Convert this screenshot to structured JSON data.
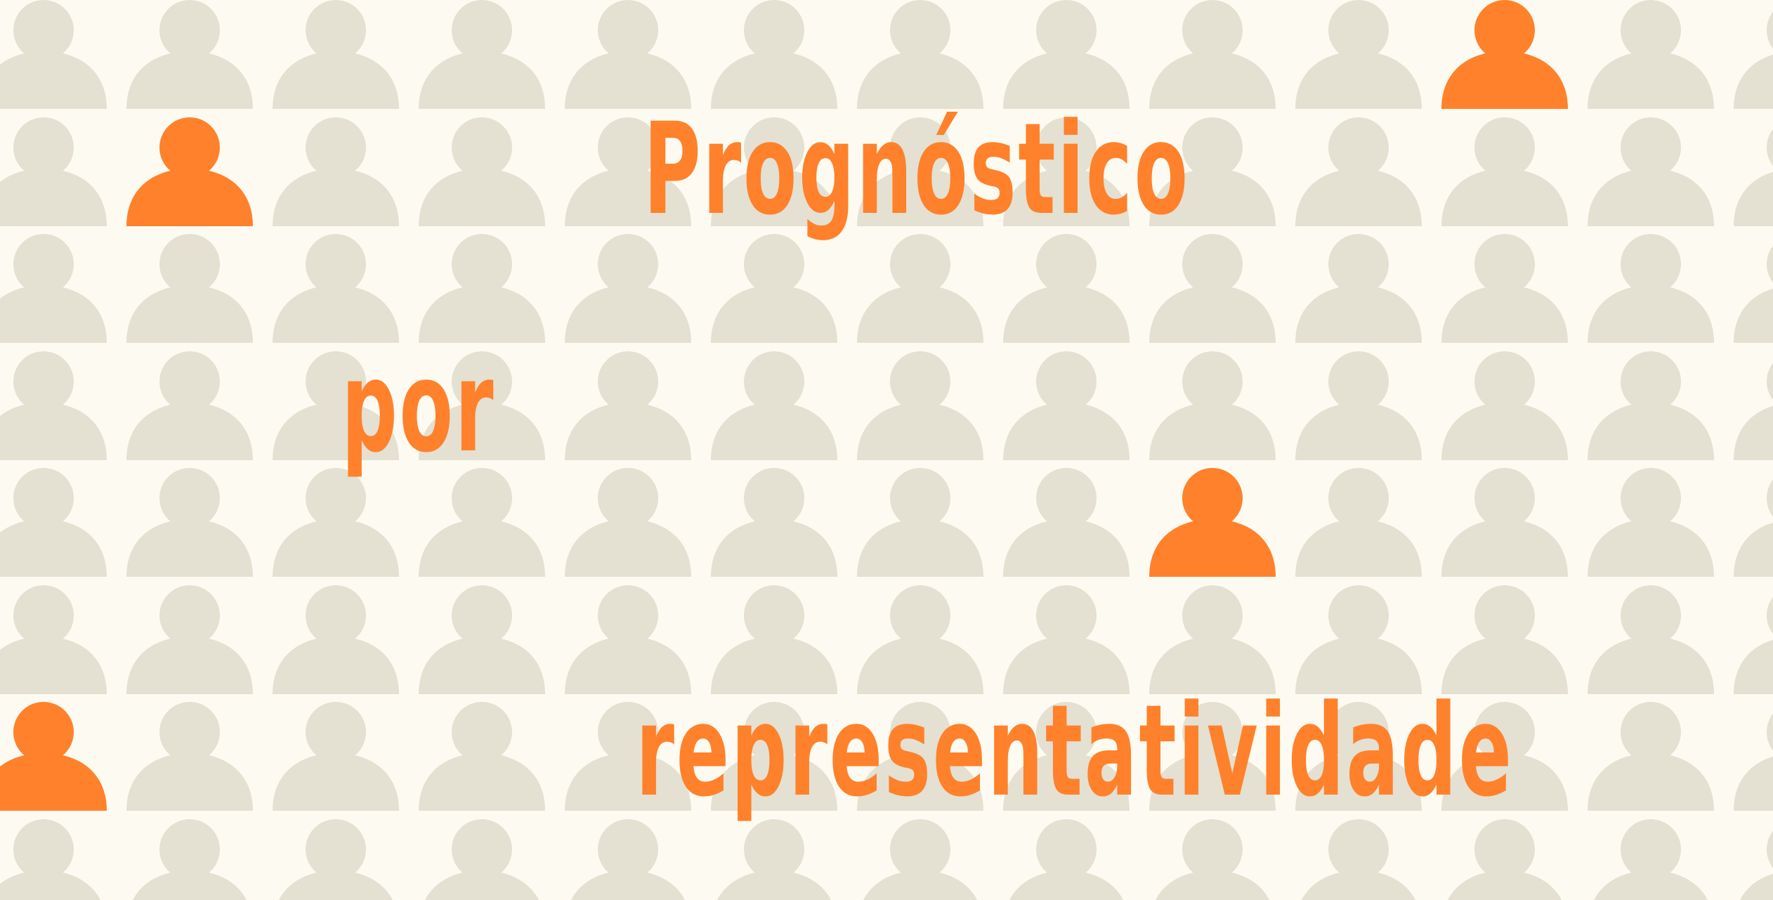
{
  "colors": {
    "background": "#fdfbf1",
    "person_default": "#e4e0d2",
    "accent": "#ff812b"
  },
  "grid": {
    "rows": 8,
    "cols": 13,
    "icon": "person-icon",
    "highlighted": [
      {
        "row": 0,
        "col": 10
      },
      {
        "row": 1,
        "col": 1
      },
      {
        "row": 4,
        "col": 8
      },
      {
        "row": 6,
        "col": 0
      }
    ]
  },
  "title": {
    "line1": "Prognóstico",
    "line2": "por",
    "line3": "representatividade"
  }
}
